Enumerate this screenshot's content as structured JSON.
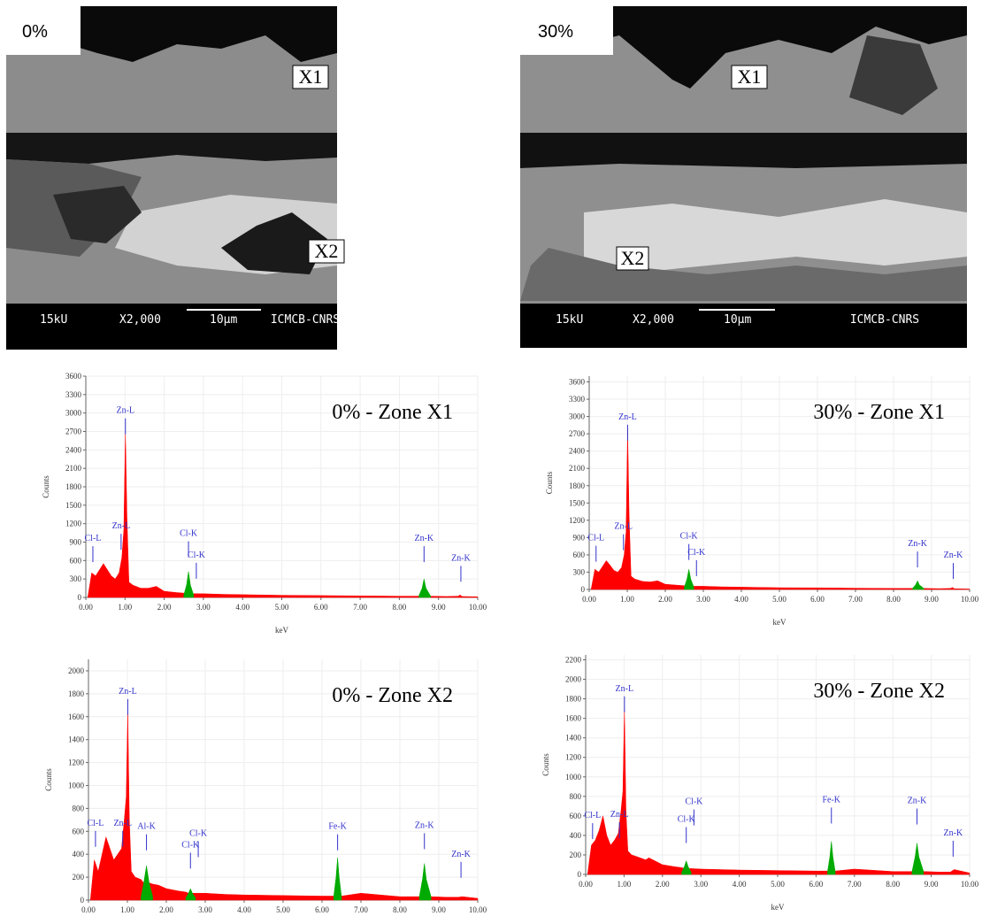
{
  "images": [
    {
      "label": "0%",
      "markers": [
        "X1",
        "X2"
      ],
      "scale_bar": [
        "15kU",
        "X2,000",
        "10μm",
        "ICMCB-CNRS"
      ]
    },
    {
      "label": "30%",
      "markers": [
        "X1",
        "X2"
      ],
      "scale_bar": [
        "15kU",
        "X2,000",
        "10μm",
        "ICMCB-CNRS"
      ]
    }
  ],
  "chart_data": [
    {
      "type": "area",
      "title": "0% - Zone X1",
      "xlabel": "keV",
      "ylabel": "Counts",
      "grid": true,
      "x": [
        0.05,
        0.15,
        0.25,
        0.35,
        0.45,
        0.55,
        0.65,
        0.75,
        0.85,
        0.92,
        0.97,
        1.01,
        1.05,
        1.1,
        1.2,
        1.4,
        1.6,
        1.8,
        2.0,
        2.3,
        2.5,
        2.57,
        2.62,
        2.67,
        2.75,
        3.0,
        3.5,
        4.0,
        5.0,
        6.0,
        7.0,
        8.0,
        8.5,
        8.58,
        8.63,
        8.68,
        8.8,
        9.2,
        9.5,
        9.55,
        9.6,
        10.0
      ],
      "series": [
        {
          "color": "#ff0000",
          "values": [
            0,
            400,
            350,
            450,
            550,
            450,
            350,
            300,
            400,
            650,
            1100,
            2700,
            1300,
            250,
            200,
            150,
            150,
            180,
            100,
            80,
            70,
            60,
            60,
            60,
            60,
            60,
            50,
            45,
            35,
            30,
            25,
            20,
            20,
            20,
            20,
            20,
            20,
            15,
            20,
            40,
            15,
            10
          ]
        },
        {
          "color": "#00aa00",
          "values": [
            null,
            null,
            null,
            null,
            null,
            null,
            null,
            null,
            null,
            null,
            null,
            null,
            null,
            null,
            null,
            null,
            null,
            null,
            null,
            null,
            40,
            200,
            420,
            200,
            40,
            null,
            null,
            null,
            null,
            null,
            null,
            null,
            30,
            150,
            300,
            150,
            20,
            null,
            null,
            null,
            null,
            null
          ]
        }
      ],
      "annotations": [
        {
          "text": "Cl-L",
          "x": 0.18,
          "y": 920
        },
        {
          "text": "Zn-L",
          "x": 1.01,
          "y": 3000
        },
        {
          "text": "Zn-L",
          "x": 0.9,
          "y": 1120
        },
        {
          "text": "Cl-K",
          "x": 2.62,
          "y": 1000
        },
        {
          "text": "Cl-K",
          "x": 2.82,
          "y": 650
        },
        {
          "text": "Zn-K",
          "x": 8.63,
          "y": 920
        },
        {
          "text": "Zn-K",
          "x": 9.57,
          "y": 600
        }
      ],
      "xlim": [
        0,
        10
      ],
      "xticks": [
        {
          "value": 0,
          "label": "0.00"
        },
        {
          "value": 1,
          "label": "1.00"
        },
        {
          "value": 2,
          "label": "2.00"
        },
        {
          "value": 3,
          "label": "3.00"
        },
        {
          "value": 4,
          "label": "4.00"
        },
        {
          "value": 5,
          "label": "5.00"
        },
        {
          "value": 6,
          "label": "6.00"
        },
        {
          "value": 7,
          "label": "7.00"
        },
        {
          "value": 8,
          "label": "8.00"
        },
        {
          "value": 9,
          "label": "9.00"
        },
        {
          "value": 10,
          "label": "10.00"
        }
      ],
      "ylim": [
        0,
        3600
      ],
      "yticks": [
        0,
        300,
        600,
        900,
        1200,
        1500,
        1800,
        2100,
        2400,
        2700,
        3000,
        3300,
        3600
      ]
    },
    {
      "type": "area",
      "title": "30% - Zone X1",
      "xlabel": "keV",
      "ylabel": "Counts",
      "grid": true,
      "x": [
        0.05,
        0.15,
        0.25,
        0.35,
        0.45,
        0.55,
        0.65,
        0.75,
        0.85,
        0.92,
        0.97,
        1.01,
        1.05,
        1.1,
        1.2,
        1.4,
        1.6,
        1.8,
        2.0,
        2.3,
        2.5,
        2.57,
        2.62,
        2.67,
        2.75,
        3.0,
        3.5,
        4.0,
        5.0,
        6.0,
        7.0,
        8.0,
        8.5,
        8.58,
        8.63,
        8.68,
        8.8,
        9.2,
        9.5,
        9.55,
        9.6,
        10.0
      ],
      "series": [
        {
          "color": "#ff0000",
          "values": [
            0,
            350,
            300,
            400,
            500,
            420,
            330,
            300,
            380,
            600,
            1000,
            2800,
            1250,
            230,
            180,
            140,
            130,
            150,
            90,
            75,
            65,
            55,
            55,
            55,
            55,
            55,
            45,
            40,
            30,
            28,
            22,
            18,
            18,
            18,
            18,
            18,
            18,
            14,
            18,
            35,
            12,
            8
          ]
        },
        {
          "color": "#00aa00",
          "values": [
            null,
            null,
            null,
            null,
            null,
            null,
            null,
            null,
            null,
            null,
            null,
            null,
            null,
            null,
            null,
            null,
            null,
            null,
            null,
            null,
            40,
            180,
            350,
            180,
            40,
            null,
            null,
            null,
            null,
            null,
            null,
            null,
            20,
            80,
            150,
            80,
            15,
            null,
            null,
            null,
            null,
            null
          ]
        }
      ],
      "annotations": [
        {
          "text": "Cl-L",
          "x": 0.18,
          "y": 850
        },
        {
          "text": "Zn-L",
          "x": 1.01,
          "y": 2950
        },
        {
          "text": "Zn-L",
          "x": 0.9,
          "y": 1050
        },
        {
          "text": "Cl-K",
          "x": 2.62,
          "y": 880
        },
        {
          "text": "Cl-K",
          "x": 2.82,
          "y": 600
        },
        {
          "text": "Zn-K",
          "x": 8.63,
          "y": 750
        },
        {
          "text": "Zn-K",
          "x": 9.57,
          "y": 550
        }
      ],
      "xlim": [
        0,
        10
      ],
      "xticks": [
        {
          "value": 0,
          "label": "0.00"
        },
        {
          "value": 1,
          "label": "1.00"
        },
        {
          "value": 2,
          "label": "2.00"
        },
        {
          "value": 3,
          "label": "3.00"
        },
        {
          "value": 4,
          "label": "4.00"
        },
        {
          "value": 5,
          "label": "5.00"
        },
        {
          "value": 6,
          "label": "6.00"
        },
        {
          "value": 7,
          "label": "7.00"
        },
        {
          "value": 8,
          "label": "8.00"
        },
        {
          "value": 9,
          "label": "9.00"
        },
        {
          "value": 10,
          "label": "10.00"
        }
      ],
      "ylim": [
        0,
        3700
      ],
      "yticks": [
        0,
        300,
        600,
        900,
        1200,
        1500,
        1800,
        2100,
        2400,
        2700,
        3000,
        3300,
        3600
      ]
    },
    {
      "type": "area",
      "title": "0% - Zone X2",
      "xlabel": "keV",
      "ylabel": "Counts",
      "grid": true,
      "x": [
        0.05,
        0.15,
        0.25,
        0.35,
        0.45,
        0.55,
        0.65,
        0.75,
        0.85,
        0.92,
        0.97,
        1.01,
        1.05,
        1.1,
        1.2,
        1.35,
        1.42,
        1.49,
        1.56,
        1.65,
        1.8,
        2.0,
        2.3,
        2.5,
        2.57,
        2.62,
        2.67,
        2.75,
        3.0,
        3.5,
        4.0,
        5.0,
        6.0,
        6.3,
        6.36,
        6.4,
        6.44,
        6.5,
        7.0,
        8.0,
        8.5,
        8.58,
        8.63,
        8.68,
        8.8,
        9.2,
        9.5,
        9.6,
        10.0
      ],
      "series": [
        {
          "color": "#ff0000",
          "values": [
            0,
            350,
            250,
            400,
            550,
            450,
            350,
            400,
            450,
            700,
            900,
            1650,
            700,
            250,
            200,
            180,
            150,
            150,
            150,
            140,
            130,
            100,
            80,
            70,
            60,
            60,
            60,
            60,
            60,
            50,
            45,
            40,
            35,
            35,
            35,
            35,
            35,
            35,
            60,
            30,
            30,
            30,
            30,
            30,
            30,
            25,
            25,
            30,
            15
          ]
        },
        {
          "color": "#00aa00",
          "values": [
            null,
            null,
            null,
            null,
            null,
            null,
            null,
            null,
            null,
            null,
            null,
            null,
            null,
            null,
            null,
            30,
            150,
            300,
            150,
            30,
            null,
            null,
            null,
            20,
            60,
            100,
            60,
            20,
            null,
            null,
            null,
            null,
            null,
            30,
            200,
            370,
            200,
            30,
            null,
            null,
            30,
            180,
            320,
            180,
            30,
            null,
            null,
            null,
            null
          ]
        }
      ],
      "annotations": [
        {
          "text": "Cl-L",
          "x": 0.18,
          "y": 650
        },
        {
          "text": "Zn-L",
          "x": 1.01,
          "y": 1800
        },
        {
          "text": "Zn-L",
          "x": 0.88,
          "y": 650
        },
        {
          "text": "Al-K",
          "x": 1.49,
          "y": 620
        },
        {
          "text": "Cl-K",
          "x": 2.82,
          "y": 560
        },
        {
          "text": "Cl-K",
          "x": 2.62,
          "y": 460
        },
        {
          "text": "Fe-K",
          "x": 6.4,
          "y": 620
        },
        {
          "text": "Zn-K",
          "x": 8.63,
          "y": 630
        },
        {
          "text": "Zn-K",
          "x": 9.57,
          "y": 380
        }
      ],
      "xlim": [
        0,
        10
      ],
      "xticks": [
        {
          "value": 0,
          "label": "0.00"
        },
        {
          "value": 1,
          "label": "1.00"
        },
        {
          "value": 2,
          "label": "2.00"
        },
        {
          "value": 3,
          "label": "3.00"
        },
        {
          "value": 4,
          "label": "4.00"
        },
        {
          "value": 5,
          "label": "5.00"
        },
        {
          "value": 6,
          "label": "6.00"
        },
        {
          "value": 7,
          "label": "7.00"
        },
        {
          "value": 8,
          "label": "8.00"
        },
        {
          "value": 9,
          "label": "9.00"
        },
        {
          "value": 10,
          "label": "10.00"
        }
      ],
      "ylim": [
        0,
        2100
      ],
      "yticks": [
        0,
        200,
        400,
        600,
        800,
        1000,
        1200,
        1400,
        1600,
        1800,
        2000
      ]
    },
    {
      "type": "area",
      "title": "30% - Zone X2",
      "xlabel": "keV",
      "ylabel": "Counts",
      "grid": true,
      "x": [
        0.05,
        0.15,
        0.25,
        0.35,
        0.45,
        0.55,
        0.65,
        0.75,
        0.85,
        0.92,
        0.97,
        1.01,
        1.05,
        1.1,
        1.2,
        1.35,
        1.42,
        1.49,
        1.56,
        1.65,
        1.8,
        2.0,
        2.3,
        2.5,
        2.57,
        2.62,
        2.67,
        2.75,
        3.0,
        3.5,
        4.0,
        5.0,
        6.0,
        6.3,
        6.36,
        6.4,
        6.44,
        6.5,
        7.0,
        8.0,
        8.5,
        8.58,
        8.63,
        8.68,
        8.8,
        9.2,
        9.5,
        9.6,
        10.0
      ],
      "series": [
        {
          "color": "#ff0000",
          "values": [
            0,
            300,
            350,
            450,
            600,
            400,
            300,
            350,
            420,
            650,
            850,
            1700,
            650,
            240,
            200,
            180,
            170,
            160,
            150,
            170,
            140,
            100,
            80,
            70,
            60,
            60,
            60,
            60,
            55,
            50,
            45,
            40,
            35,
            35,
            35,
            35,
            35,
            35,
            55,
            30,
            30,
            30,
            30,
            30,
            30,
            25,
            25,
            50,
            15
          ]
        },
        {
          "color": "#00aa00",
          "values": [
            null,
            null,
            null,
            null,
            null,
            null,
            null,
            null,
            null,
            null,
            null,
            null,
            null,
            null,
            null,
            null,
            null,
            null,
            null,
            null,
            null,
            null,
            null,
            20,
            80,
            140,
            80,
            20,
            null,
            null,
            null,
            null,
            null,
            30,
            180,
            340,
            180,
            30,
            null,
            null,
            30,
            180,
            320,
            180,
            30,
            null,
            null,
            null,
            null
          ]
        }
      ],
      "annotations": [
        {
          "text": "Cl-L",
          "x": 0.18,
          "y": 580
        },
        {
          "text": "Zn-L",
          "x": 1.01,
          "y": 1880
        },
        {
          "text": "Zn-L",
          "x": 0.88,
          "y": 590
        },
        {
          "text": "Cl-K",
          "x": 2.82,
          "y": 720
        },
        {
          "text": "Cl-K",
          "x": 2.62,
          "y": 540
        },
        {
          "text": "Fe-K",
          "x": 6.4,
          "y": 740
        },
        {
          "text": "Zn-K",
          "x": 8.63,
          "y": 730
        },
        {
          "text": "Zn-K",
          "x": 9.57,
          "y": 400
        }
      ],
      "xlim": [
        0,
        10
      ],
      "xticks": [
        {
          "value": 0,
          "label": "0.00"
        },
        {
          "value": 1,
          "label": "1.00"
        },
        {
          "value": 2,
          "label": "2.00"
        },
        {
          "value": 3,
          "label": "3.00"
        },
        {
          "value": 4,
          "label": "4.00"
        },
        {
          "value": 5,
          "label": "5.00"
        },
        {
          "value": 6,
          "label": "6.00"
        },
        {
          "value": 7,
          "label": "7.00"
        },
        {
          "value": 8,
          "label": "8.00"
        },
        {
          "value": 9,
          "label": "9.00"
        },
        {
          "value": 10,
          "label": "10.00"
        }
      ],
      "ylim": [
        0,
        2250
      ],
      "yticks": [
        0,
        200,
        400,
        600,
        800,
        1000,
        1200,
        1400,
        1600,
        1800,
        2000,
        2200
      ]
    }
  ]
}
